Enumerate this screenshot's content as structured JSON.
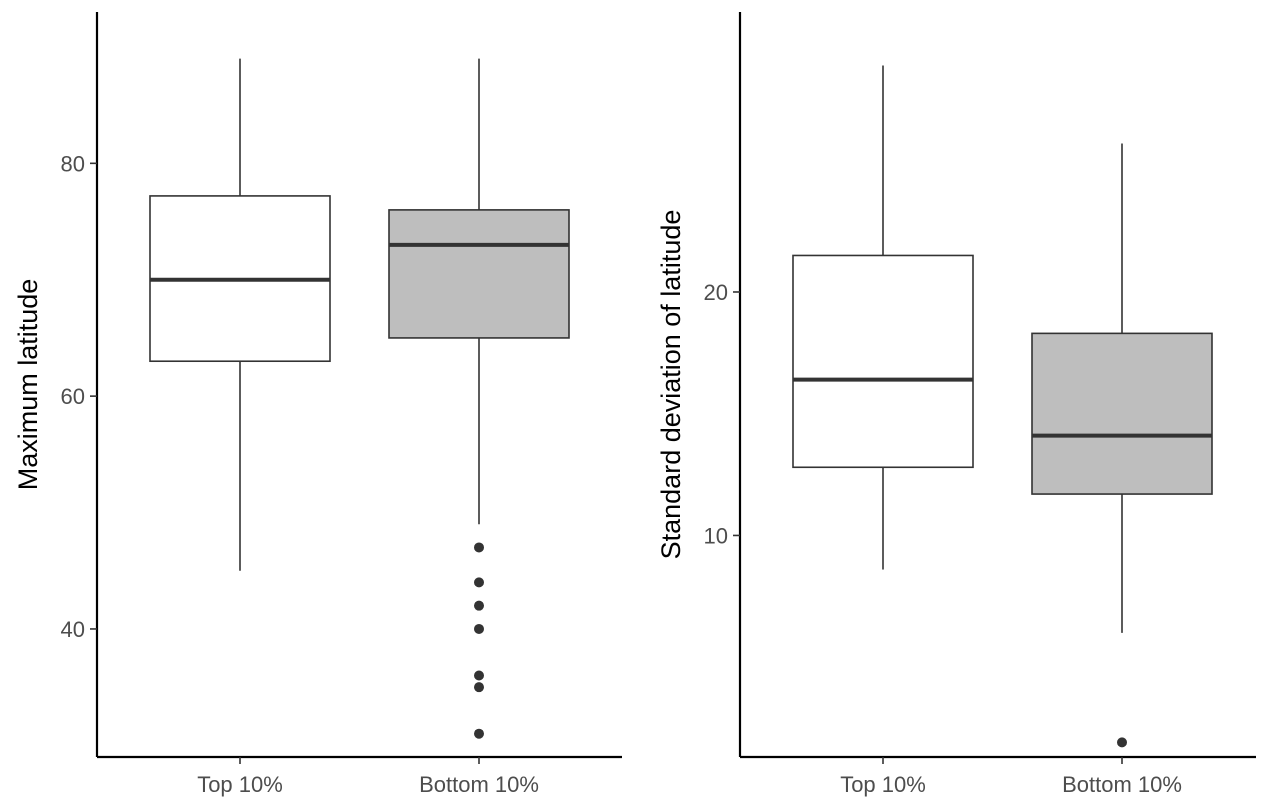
{
  "chart_data": [
    {
      "type": "box",
      "categories": [
        "Top 10%",
        "Bottom 10%"
      ],
      "ylabel": "Maximum latitude",
      "xlabel": "",
      "ylim": [
        29,
        93
      ],
      "yticks": [
        40,
        60,
        80
      ],
      "boxes": [
        {
          "category": "Top 10%",
          "lower_whisker": 45,
          "q1": 63,
          "median": 70,
          "q3": 77.2,
          "upper_whisker": 89,
          "outliers": [],
          "fill": "#ffffff"
        },
        {
          "category": "Bottom 10%",
          "lower_whisker": 49,
          "q1": 65,
          "median": 73,
          "q3": 76,
          "upper_whisker": 89,
          "outliers": [
            47,
            44,
            42,
            40,
            36,
            35,
            31
          ],
          "fill": "#bebebe"
        }
      ]
    },
    {
      "type": "box",
      "categories": [
        "Top 10%",
        "Bottom 10%"
      ],
      "ylabel": "Standard deviation of latitude",
      "xlabel": "",
      "ylim": [
        0.9,
        31.5
      ],
      "yticks": [
        10,
        20
      ],
      "boxes": [
        {
          "category": "Top 10%",
          "lower_whisker": 8.6,
          "q1": 12.8,
          "median": 16.4,
          "q3": 21.5,
          "upper_whisker": 29.3,
          "outliers": [],
          "fill": "#ffffff"
        },
        {
          "category": "Bottom 10%",
          "lower_whisker": 6,
          "q1": 11.7,
          "median": 14.1,
          "q3": 18.3,
          "upper_whisker": 26.1,
          "outliers": [
            1.5
          ],
          "fill": "#bebebe"
        }
      ]
    }
  ]
}
